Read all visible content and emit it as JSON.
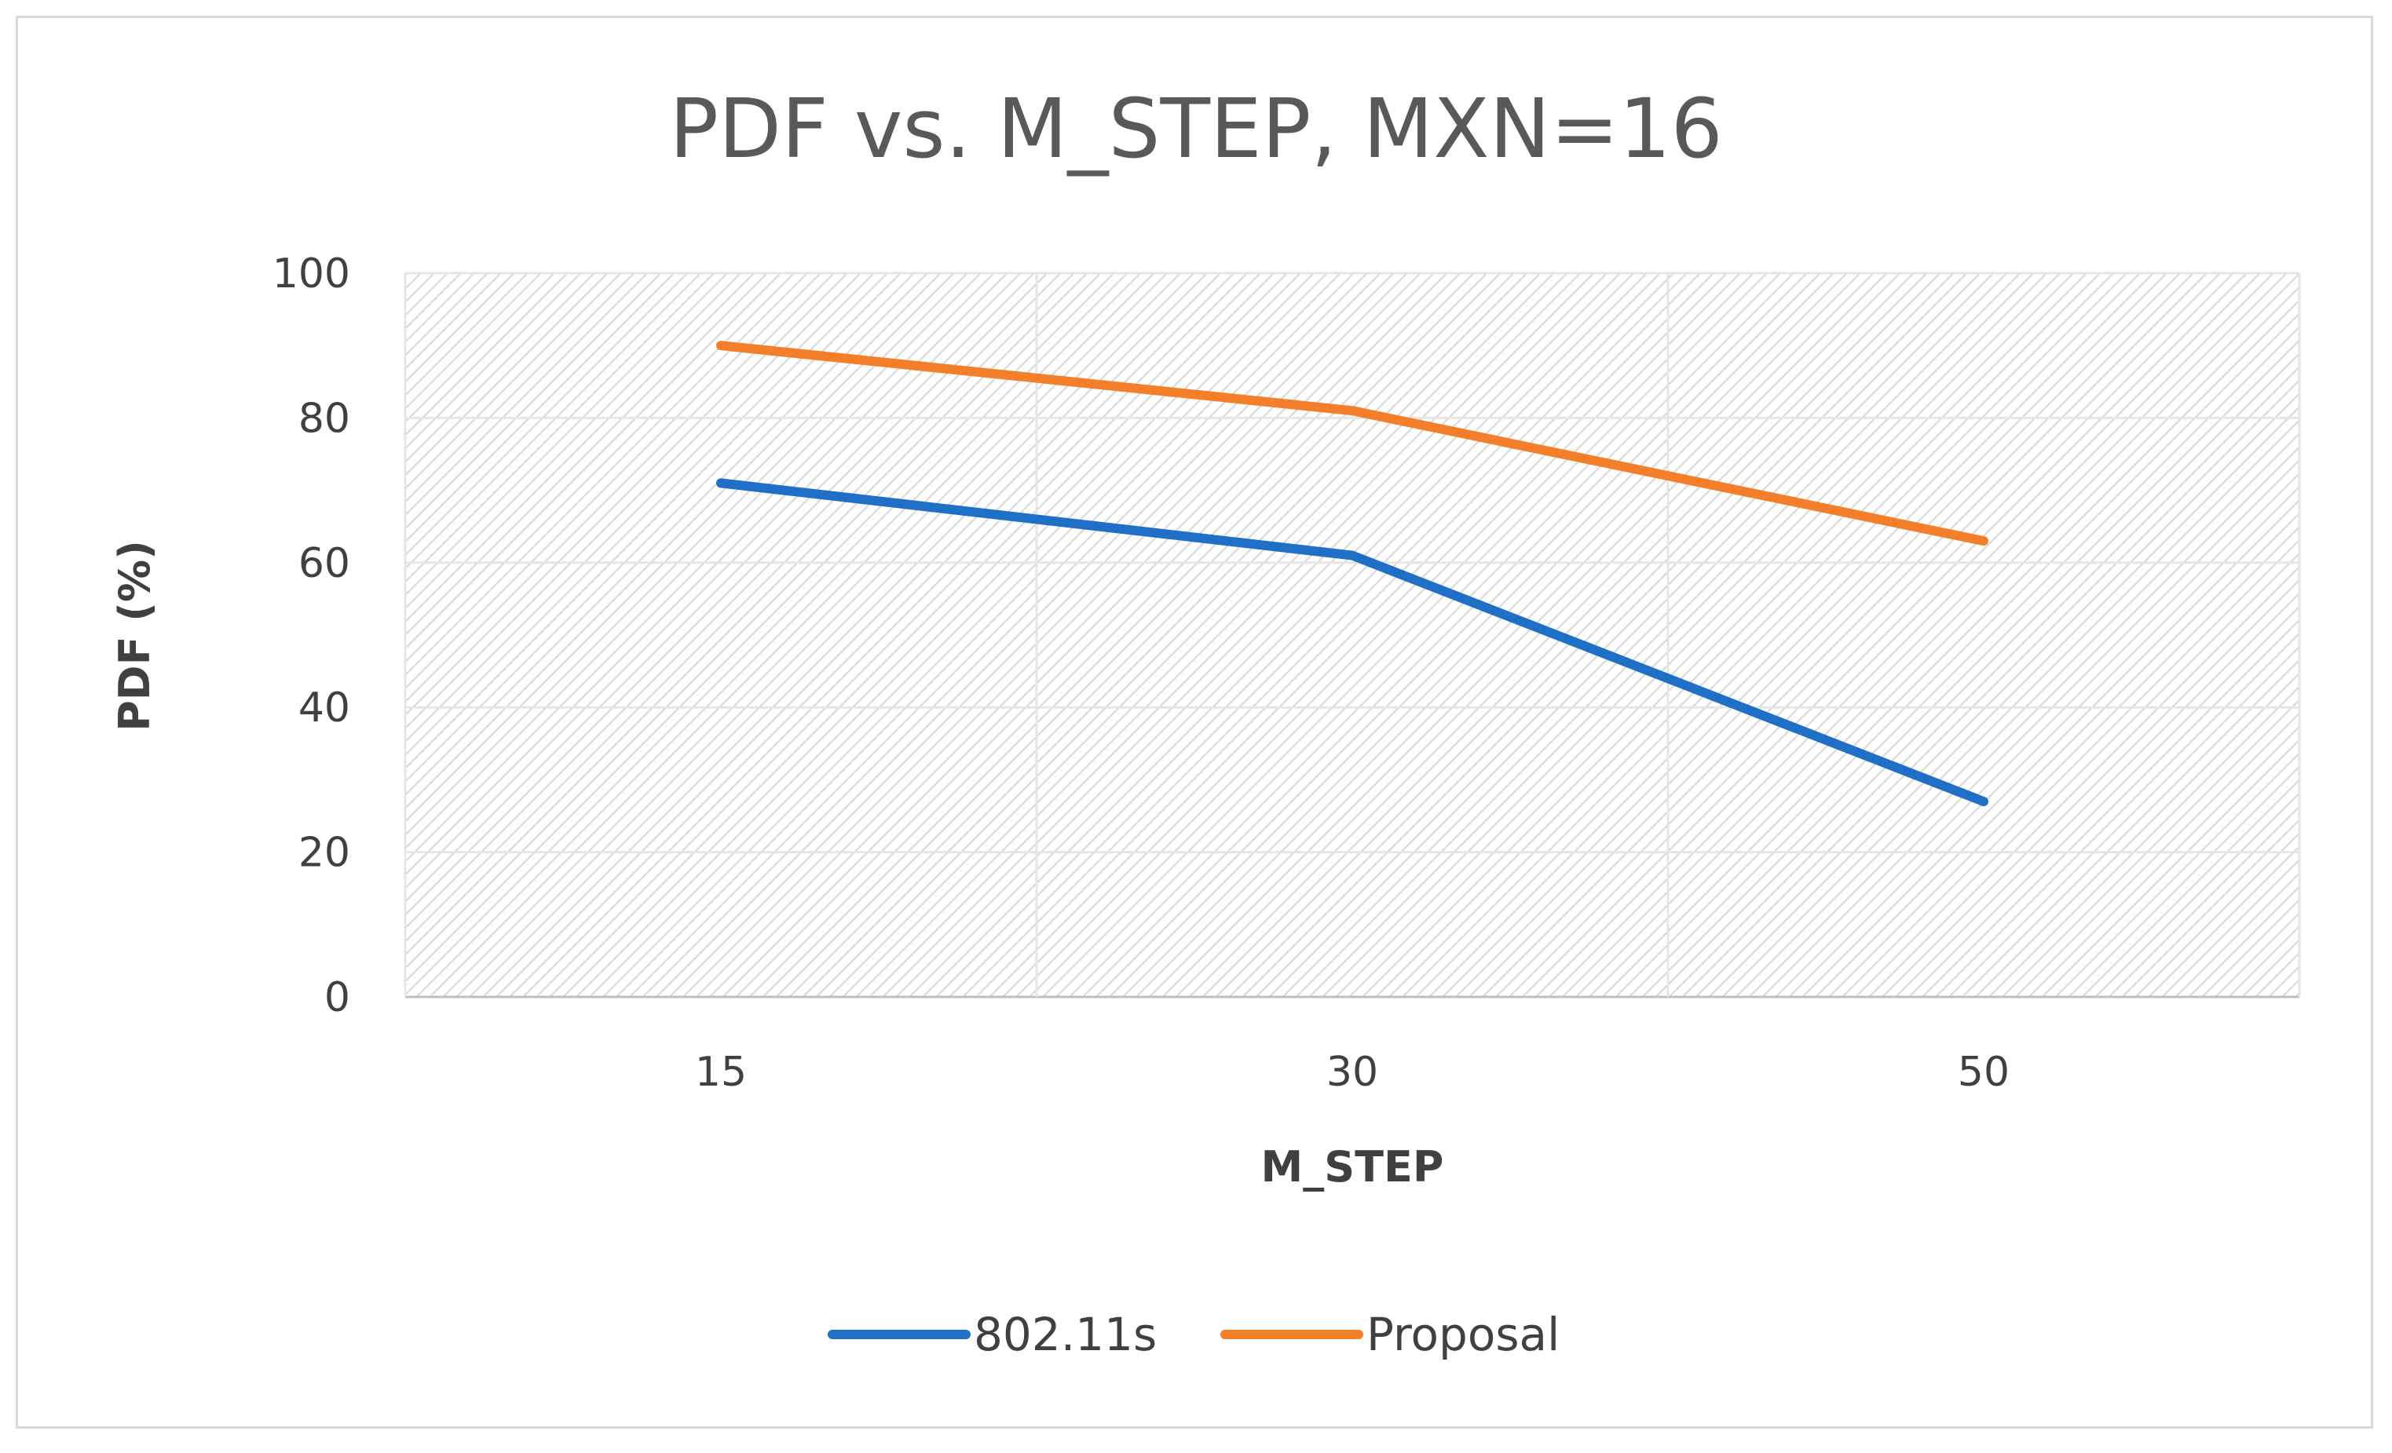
{
  "chart_data": {
    "type": "line",
    "title": "PDF vs. M_STEP, MXN=16",
    "xlabel": "M_STEP",
    "ylabel": "PDF (%)",
    "categories": [
      "15",
      "30",
      "50"
    ],
    "ylim": [
      0,
      100
    ],
    "yticks": [
      0,
      20,
      40,
      60,
      80,
      100
    ],
    "grid": true,
    "legend_position": "bottom",
    "series": [
      {
        "name": "802.11s",
        "color": "#1f6fc6",
        "values": [
          71,
          61,
          27
        ]
      },
      {
        "name": "Proposal",
        "color": "#f47f2a",
        "values": [
          90,
          81,
          63
        ]
      }
    ]
  }
}
